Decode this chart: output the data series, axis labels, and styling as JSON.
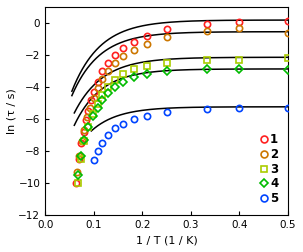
{
  "xlabel": "1 / T (1 / K)",
  "ylabel": "ln (τ / s)",
  "xlim": [
    0.0,
    0.5
  ],
  "ylim": [
    -12,
    1
  ],
  "xticks": [
    0.0,
    0.1,
    0.2,
    0.3,
    0.4,
    0.5
  ],
  "yticks": [
    0,
    -2,
    -4,
    -6,
    -8,
    -10,
    -12
  ],
  "background_color": "#ffffff",
  "series": [
    {
      "label": "1",
      "color": "#ff2020",
      "marker": "o",
      "markersize": 4.5,
      "x": [
        0.063,
        0.069,
        0.074,
        0.079,
        0.084,
        0.089,
        0.095,
        0.1,
        0.108,
        0.118,
        0.13,
        0.143,
        0.16,
        0.182,
        0.21,
        0.25,
        0.333,
        0.4,
        0.5
      ],
      "y": [
        -10.0,
        -8.5,
        -7.5,
        -6.8,
        -6.1,
        -5.5,
        -4.8,
        -4.3,
        -3.7,
        -3.0,
        -2.5,
        -2.0,
        -1.6,
        -1.2,
        -0.8,
        -0.4,
        -0.05,
        0.05,
        0.1
      ]
    },
    {
      "label": "2",
      "color": "#cc7700",
      "marker": "o",
      "markersize": 4.5,
      "x": [
        0.065,
        0.07,
        0.075,
        0.08,
        0.087,
        0.093,
        0.1,
        0.108,
        0.118,
        0.13,
        0.143,
        0.16,
        0.182,
        0.21,
        0.25,
        0.333,
        0.4,
        0.5
      ],
      "y": [
        -9.3,
        -8.3,
        -7.4,
        -6.7,
        -5.9,
        -5.3,
        -4.7,
        -4.1,
        -3.5,
        -3.0,
        -2.5,
        -2.1,
        -1.7,
        -1.3,
        -0.9,
        -0.5,
        -0.3,
        -0.6
      ]
    },
    {
      "label": "3",
      "color": "#aacc00",
      "marker": "s",
      "markersize": 4.5,
      "x": [
        0.067,
        0.074,
        0.081,
        0.089,
        0.098,
        0.108,
        0.118,
        0.13,
        0.143,
        0.16,
        0.182,
        0.21,
        0.25,
        0.333,
        0.4,
        0.5
      ],
      "y": [
        -10.0,
        -8.5,
        -7.4,
        -6.5,
        -5.7,
        -5.1,
        -4.5,
        -4.0,
        -3.6,
        -3.2,
        -2.9,
        -2.7,
        -2.5,
        -2.3,
        -2.3,
        -2.2
      ]
    },
    {
      "label": "4",
      "color": "#00bb00",
      "marker": "D",
      "markersize": 4.0,
      "x": [
        0.067,
        0.074,
        0.081,
        0.089,
        0.098,
        0.108,
        0.118,
        0.13,
        0.143,
        0.16,
        0.182,
        0.21,
        0.25,
        0.333,
        0.4,
        0.5
      ],
      "y": [
        -9.5,
        -8.3,
        -7.3,
        -6.5,
        -5.8,
        -5.3,
        -4.8,
        -4.4,
        -4.0,
        -3.7,
        -3.4,
        -3.2,
        -3.0,
        -2.9,
        -2.9,
        -2.95
      ]
    },
    {
      "label": "5",
      "color": "#0044ff",
      "marker": "o",
      "markersize": 4.5,
      "x": [
        0.1,
        0.108,
        0.118,
        0.13,
        0.143,
        0.16,
        0.182,
        0.21,
        0.25,
        0.333,
        0.4,
        0.5
      ],
      "y": [
        -8.6,
        -8.0,
        -7.5,
        -7.0,
        -6.6,
        -6.3,
        -6.0,
        -5.8,
        -5.6,
        -5.4,
        -5.35,
        -5.3
      ]
    }
  ],
  "fit_lines": [
    {
      "x_range": [
        0.055,
        0.505
      ],
      "params": [
        0.18,
        11.5,
        0.058
      ]
    },
    {
      "x_range": [
        0.055,
        0.505
      ],
      "params": [
        -0.55,
        10.5,
        0.057
      ]
    },
    {
      "x_range": [
        0.06,
        0.505
      ],
      "params": [
        -2.15,
        9.8,
        0.058
      ]
    },
    {
      "x_range": [
        0.06,
        0.505
      ],
      "params": [
        -2.88,
        10.5,
        0.055
      ]
    },
    {
      "x_range": [
        0.095,
        0.505
      ],
      "params": [
        -5.25,
        8.5,
        0.055
      ]
    }
  ]
}
